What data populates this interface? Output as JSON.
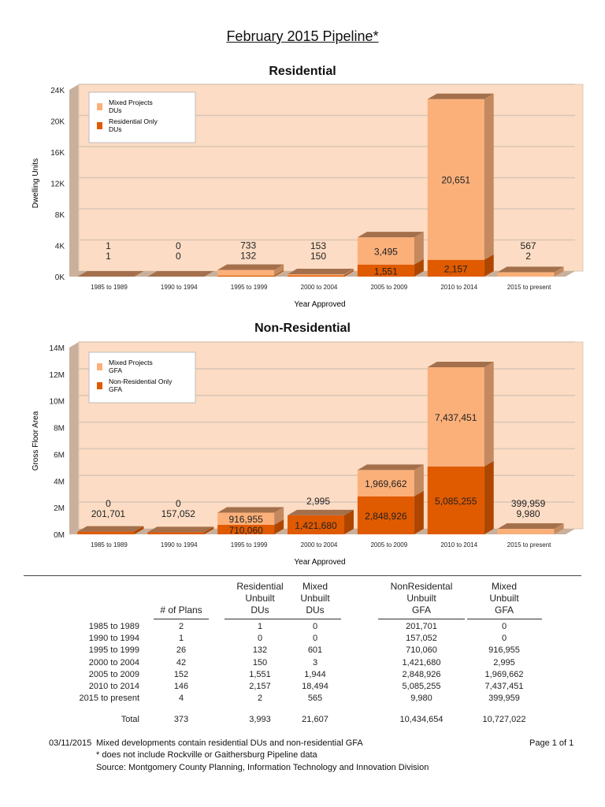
{
  "title": "February 2015 Pipeline*",
  "chart_data": [
    {
      "type": "bar",
      "stacked": true,
      "title": "Residential",
      "xlabel": "Year Approved",
      "ylabel": "Dwelling Units",
      "categories": [
        "1985 to 1989",
        "1990 to 1994",
        "1995 to 1999",
        "2000 to 2004",
        "2005 to 2009",
        "2010 to 2014",
        "2015 to present"
      ],
      "yticks": [
        "0K",
        "4K",
        "8K",
        "12K",
        "16K",
        "20K",
        "24K"
      ],
      "ylim": [
        0,
        24000
      ],
      "series": [
        {
          "name": "Residential Only DUs",
          "color": "#e05a00",
          "values": [
            1,
            0,
            132,
            150,
            1551,
            2157,
            2
          ],
          "labels": [
            "1",
            "0",
            "132",
            "150",
            "1,551",
            "2,157",
            "2"
          ]
        },
        {
          "name": "Mixed Projects DUs",
          "color": "#fbb07a",
          "values": [
            1,
            0,
            733,
            153,
            3495,
            20651,
            567
          ],
          "labels": [
            "1",
            "0",
            "733",
            "153",
            "3,495",
            "20,651",
            "567"
          ]
        }
      ],
      "legend": [
        "Mixed Projects DUs",
        "Residential Only DUs"
      ],
      "legend_position": "top-left"
    },
    {
      "type": "bar",
      "stacked": true,
      "title": "Non-Residential",
      "xlabel": "Year Approved",
      "ylabel": "Gross Floor Area",
      "categories": [
        "1985 to 1989",
        "1990 to 1994",
        "1995 to 1999",
        "2000 to 2004",
        "2005 to 2009",
        "2010 to 2014",
        "2015 to present"
      ],
      "yticks": [
        "0M",
        "2M",
        "4M",
        "6M",
        "8M",
        "10M",
        "12M",
        "14M"
      ],
      "ylim": [
        0,
        14000000
      ],
      "series": [
        {
          "name": "Non-Residential Only GFA",
          "color": "#e05a00",
          "values": [
            201701,
            157052,
            710060,
            1421680,
            2848926,
            5085255,
            9980
          ],
          "labels": [
            "201,701",
            "157,052",
            "710,060",
            "1,421,680",
            "2,848,926",
            "5,085,255",
            "9,980"
          ]
        },
        {
          "name": "Mixed Projects GFA",
          "color": "#fbb07a",
          "values": [
            0,
            0,
            916955,
            2995,
            1969662,
            7437451,
            399959
          ],
          "labels": [
            "0",
            "0",
            "916,955",
            "2,995",
            "1,969,662",
            "7,437,451",
            "399,959"
          ]
        }
      ],
      "legend": [
        "Mixed Projects GFA",
        "Non-Residential Only GFA"
      ],
      "legend_position": "top-left"
    }
  ],
  "table": {
    "headers": [
      "# of Plans",
      "Residential\nUnbuilt\nDUs",
      "Mixed\nUnbuilt\nDUs",
      "NonResidental\nUnbuilt\nGFA",
      "Mixed\nUnbuilt\nGFA"
    ],
    "rows": [
      [
        "1985 to 1989",
        "2",
        "1",
        "0",
        "201,701",
        "0"
      ],
      [
        "1990 to 1994",
        "1",
        "0",
        "0",
        "157,052",
        "0"
      ],
      [
        "1995 to 1999",
        "26",
        "132",
        "601",
        "710,060",
        "916,955"
      ],
      [
        "2000 to 2004",
        "42",
        "150",
        "3",
        "1,421,680",
        "2,995"
      ],
      [
        "2005 to 2009",
        "152",
        "1,551",
        "1,944",
        "2,848,926",
        "1,969,662"
      ],
      [
        "2010 to 2014",
        "146",
        "2,157",
        "18,494",
        "5,085,255",
        "7,437,451"
      ],
      [
        "2015 to present",
        "4",
        "2",
        "565",
        "9,980",
        "399,959"
      ]
    ],
    "total": [
      "Total",
      "373",
      "3,993",
      "21,607",
      "10,434,654",
      "10,727,022"
    ]
  },
  "footer": {
    "date": "03/11/2015",
    "note1": "Mixed developments contain residential DUs and non-residential GFA",
    "note2": "* does not include Rockville or Gaithersburg Pipeline data",
    "note3": "Source: Montgomery County Planning, Information Technology and Innovation Division",
    "page": "Page 1 of 1"
  }
}
